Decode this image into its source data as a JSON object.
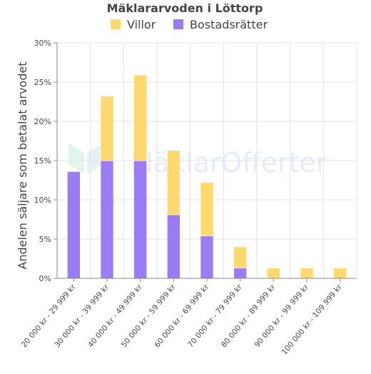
{
  "chart_data": {
    "type": "bar",
    "stacked": true,
    "title": "Mäklararvoden i Löttorp",
    "ylabel": "Andelen säljare som betalat arvodet",
    "xlabel": "",
    "ylim": [
      0,
      30
    ],
    "yticks": [
      "0%",
      "5%",
      "10%",
      "15%",
      "20%",
      "25%",
      "30%"
    ],
    "grid": true,
    "legend_position": "top",
    "categories": [
      "20 000 kr - 29 999 kr",
      "30 000 kr - 39 999 kr",
      "40 000 kr - 49 999 kr",
      "50 000 kr - 59 999 kr",
      "60 000 kr - 69 999 kr",
      "70 000 kr - 79 999 kr",
      "80 000 kr - 89 999 kr",
      "90 000 kr - 99 999 kr",
      "100 000 kr - 109 999 kr"
    ],
    "series": [
      {
        "name": "Bostadsrätter",
        "color": "#9b7cf7",
        "values": [
          13.6,
          15.0,
          15.0,
          8.1,
          5.4,
          1.3,
          0,
          0,
          0
        ]
      },
      {
        "name": "Villor",
        "color": "#ffd86e",
        "values": [
          0,
          8.2,
          10.9,
          8.2,
          6.8,
          2.7,
          1.3,
          1.3,
          1.3
        ]
      }
    ],
    "legend_order": [
      "Villor",
      "Bostadsrätter"
    ]
  },
  "watermark": {
    "text": "MäklarOfferter"
  }
}
